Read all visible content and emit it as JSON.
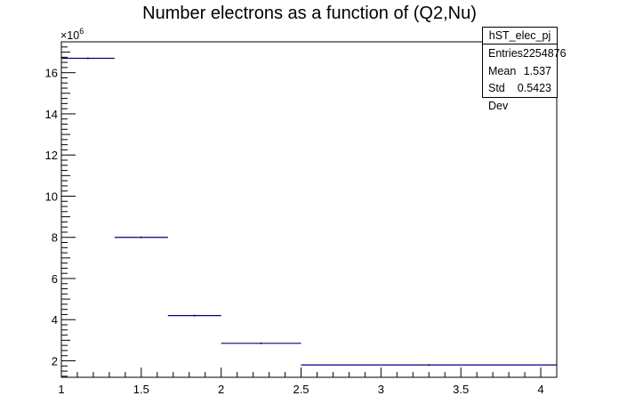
{
  "chart_data": {
    "type": "histogram",
    "title": "Number electrons as a function of (Q2,Nu)",
    "xlabel": "",
    "ylabel": "",
    "y_exponent_label": "×10",
    "y_exponent_power": "6",
    "x_ticks": [
      "1",
      "1.5",
      "2",
      "2.5",
      "3",
      "3.5",
      "4"
    ],
    "y_ticks": [
      "2",
      "4",
      "6",
      "8",
      "10",
      "12",
      "14",
      "16"
    ],
    "xlim": [
      1,
      4.1
    ],
    "ylim": [
      1.2,
      17.5
    ],
    "bins": [
      {
        "x_low": 1.0,
        "x_high": 1.333,
        "value": 16.7
      },
      {
        "x_low": 1.333,
        "x_high": 1.667,
        "value": 8.0
      },
      {
        "x_low": 1.667,
        "x_high": 2.0,
        "value": 4.2
      },
      {
        "x_low": 2.0,
        "x_high": 2.5,
        "value": 2.85
      },
      {
        "x_low": 2.5,
        "x_high": 4.1,
        "value": 1.8
      }
    ],
    "line_color": "#000080",
    "grid": false,
    "stats": {
      "name": "hST_elec_pj",
      "rows": [
        {
          "label": "Entries",
          "value": "2254876"
        },
        {
          "label": "Mean",
          "value": "1.537"
        },
        {
          "label": "Std Dev",
          "value": "0.5423"
        }
      ]
    }
  }
}
